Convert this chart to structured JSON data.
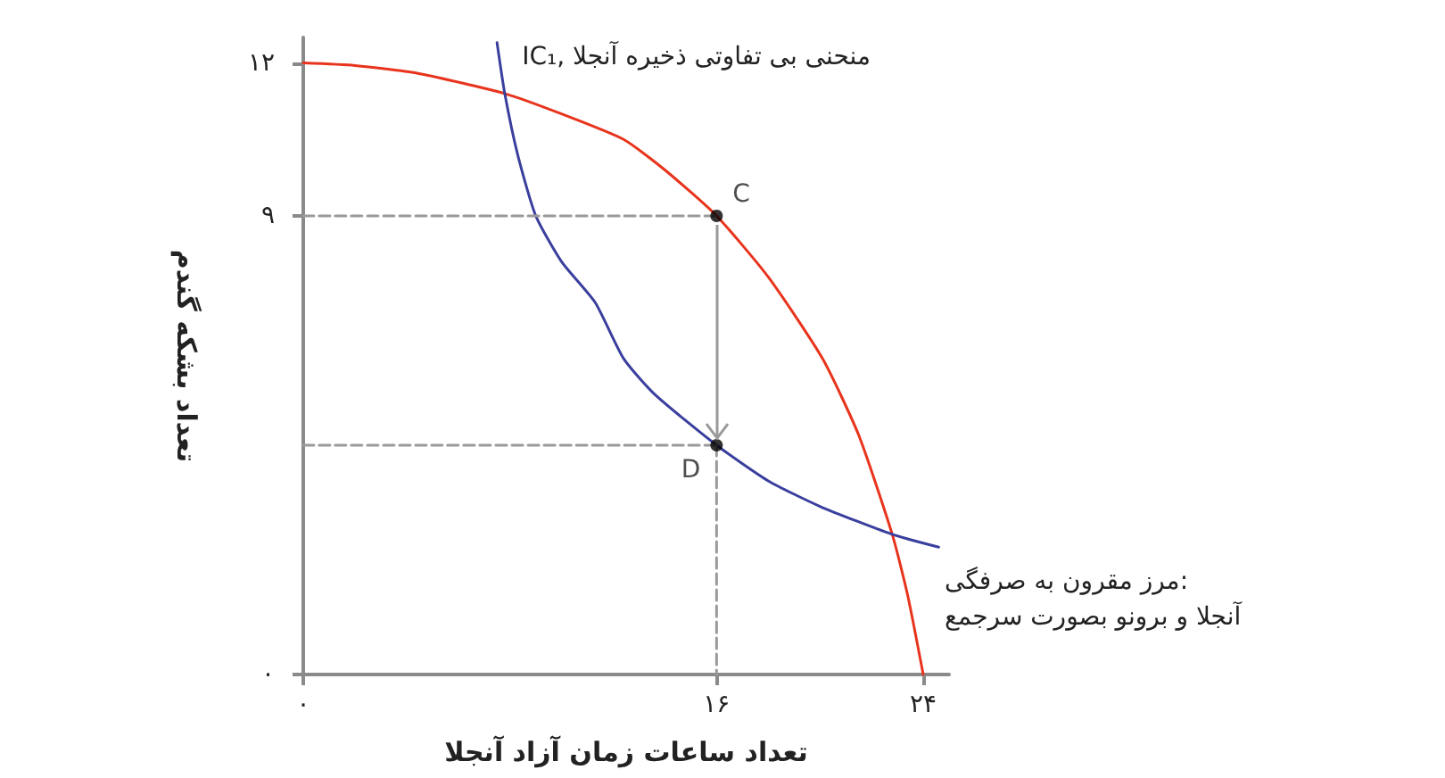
{
  "chart_data": {
    "type": "line",
    "xlabel": "تعداد ساعات زمان آزاد آنجلا",
    "ylabel": "تعداد بشکه گندم",
    "xlim": [
      0,
      25
    ],
    "ylim": [
      0,
      12.5
    ],
    "xticks": [
      {
        "value": 0,
        "label": "۰"
      },
      {
        "value": 16,
        "label": "۱۶"
      },
      {
        "value": 24,
        "label": "۲۴"
      }
    ],
    "yticks": [
      {
        "value": 0,
        "label": "۰"
      },
      {
        "value": 9,
        "label": "۹"
      },
      {
        "value": 12,
        "label": "۱۲"
      }
    ],
    "grid": false,
    "legend": false,
    "annotations": [
      {
        "text": "C",
        "x": 16,
        "y": 9
      },
      {
        "text": "D",
        "x": 16,
        "y": 4.5
      }
    ],
    "series": [
      {
        "name": "مرز مقرون به صرفگی:\nآنجلا و برونو بصورت سرجمع",
        "color": "#e8341c",
        "marker": "none",
        "line_style": "solid",
        "x": [
          0,
          2,
          4.4,
          7.8,
          10,
          12.4,
          14,
          16,
          18,
          20.1,
          21.5,
          22.8,
          23.4,
          24
        ],
        "values": [
          12,
          11.95,
          11.8,
          11.4,
          11,
          10.5,
          9.9,
          9,
          7.8,
          6.2,
          4.7,
          2.75,
          1.55,
          0
        ]
      },
      {
        "name": "IC₁, منحنی بی تفاوتی ذخیره آنجلا",
        "color": "#3a3f9e",
        "marker": "none",
        "line_style": "solid",
        "x": [
          24.6,
          22.8,
          20,
          18,
          16,
          13.6,
          12.4,
          11.3,
          10,
          9,
          8.3,
          7.8,
          7.5
        ],
        "values": [
          2.5,
          2.75,
          3.3,
          3.8,
          4.5,
          5.5,
          6.2,
          7.3,
          8.1,
          9,
          10.2,
          11.4,
          12.4
        ]
      },
      {
        "type": "line",
        "color": "#9a9a9a",
        "marker": "none",
        "line_style": "dashed",
        "x": [
          0,
          16
        ],
        "values": [
          9,
          9
        ]
      },
      {
        "type": "line",
        "color": "#9a9a9a",
        "marker": "none",
        "line_style": "dashed",
        "x": [
          0,
          16
        ],
        "values": [
          4.5,
          4.5
        ]
      },
      {
        "type": "line",
        "color": "#9a9a9a",
        "marker": "none",
        "line_style": "dashed",
        "x": [
          16,
          16
        ],
        "values": [
          4.5,
          0
        ]
      },
      {
        "type": "scatter",
        "color": "#000000",
        "marker": "circle",
        "x": [
          16,
          16
        ],
        "values": [
          9,
          4.5
        ]
      }
    ]
  }
}
